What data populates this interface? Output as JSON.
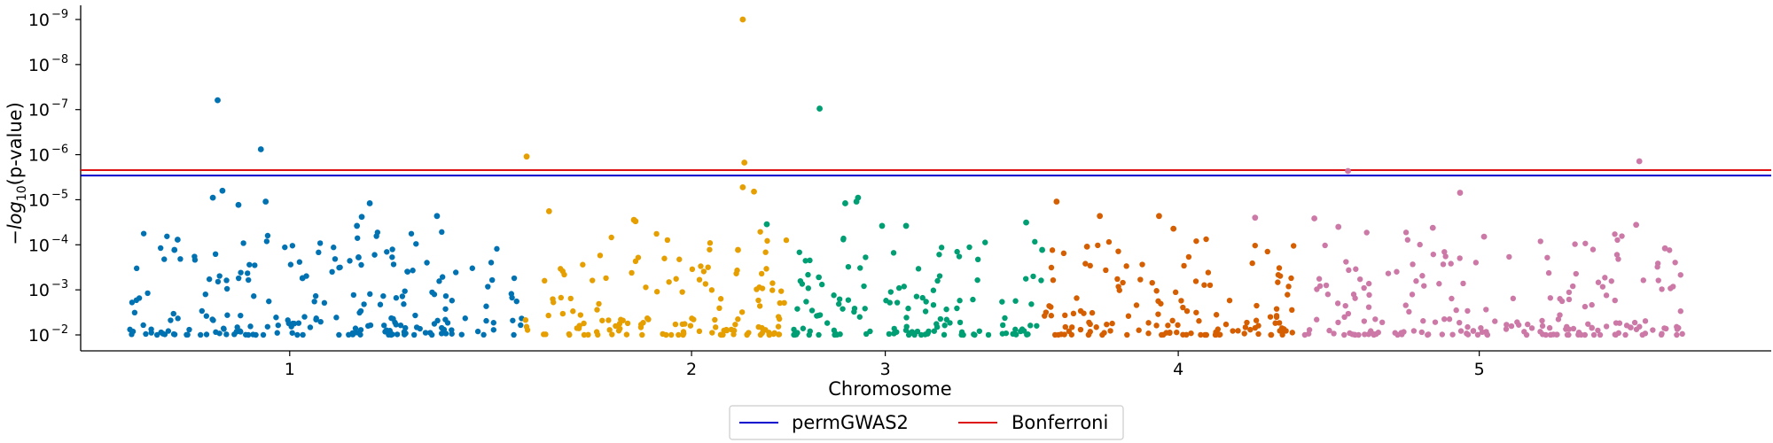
{
  "chart_data": {
    "type": "scatter",
    "title": "",
    "xlabel": "Chromosome",
    "ylabel_prefix": "−log",
    "ylabel_sub": "10",
    "ylabel_suffix": "(p-value)",
    "y_scale": "log",
    "grid": false,
    "legend_position": "bottom-center",
    "ylim": [
      0.01,
      1e-09
    ],
    "y_ticks": [
      {
        "base": "10",
        "exp": "−2",
        "value": 0.01
      },
      {
        "base": "10",
        "exp": "−3",
        "value": 0.001
      },
      {
        "base": "10",
        "exp": "−4",
        "value": 0.0001
      },
      {
        "base": "10",
        "exp": "−5",
        "value": 1e-05
      },
      {
        "base": "10",
        "exp": "−6",
        "value": 1e-06
      },
      {
        "base": "10",
        "exp": "−7",
        "value": 1e-07
      },
      {
        "base": "10",
        "exp": "−8",
        "value": 1e-08
      },
      {
        "base": "10",
        "exp": "−9",
        "value": 1e-09
      }
    ],
    "x_range": [
      0,
      1000
    ],
    "x_ticks": [
      {
        "label": "1",
        "pos": 130
      },
      {
        "label": "2",
        "pos": 381
      },
      {
        "label": "3",
        "pos": 502
      },
      {
        "label": "4",
        "pos": 685
      },
      {
        "label": "5",
        "pos": 873
      }
    ],
    "thresholds": [
      {
        "name": "permGWAS2",
        "value": 2.9e-06,
        "color": "#0000cc"
      },
      {
        "name": "Bonferroni",
        "value": 2.2e-06,
        "color": "#dd1111"
      }
    ],
    "chromosomes": [
      {
        "name": "1",
        "color": "#0072b2",
        "x_range": [
          28,
          276
        ],
        "highlights": [
          [
            85,
            6.2e-08
          ],
          [
            112,
            7.6e-07
          ],
          [
            82,
            9e-06
          ],
          [
            88,
            6.3e-06
          ],
          [
            98,
            1.3e-05
          ],
          [
            172,
            3.8e-05
          ],
          [
            60,
            7.7e-05
          ],
          [
            173,
            0.00019
          ],
          [
            175,
            2.4e-05
          ],
          [
            180,
            1.2e-05
          ],
          [
            222,
            2.3e-05
          ],
          [
            115,
            1.1e-05
          ],
          [
            58,
            0.00013
          ],
          [
            138,
            0.00055
          ]
        ]
      },
      {
        "name": "2",
        "color": "#e69f00",
        "x_range": [
          277,
          442
        ],
        "highlights": [
          [
            278,
            1.1e-06
          ],
          [
            292,
            1.8e-05
          ],
          [
            413,
            1e-09
          ],
          [
            414,
            1.5e-06
          ],
          [
            420,
            6.6e-06
          ],
          [
            413,
            5.3e-06
          ],
          [
            345,
            2.8e-05
          ],
          [
            346,
            3e-05
          ],
          [
            410,
            0.00013
          ]
        ]
      },
      {
        "name": "3",
        "color": "#009e73",
        "x_range": [
          443,
          600
        ],
        "highlights": [
          [
            461,
            9.5e-08
          ],
          [
            477,
            1.2e-05
          ],
          [
            484,
            1.1e-05
          ],
          [
            485,
            9e-06
          ],
          [
            500,
            3.8e-05
          ],
          [
            428,
            3.5e-05
          ],
          [
            515,
            3.8e-05
          ],
          [
            590,
            3.2e-05
          ],
          [
            600,
            0.00013
          ]
        ]
      },
      {
        "name": "4",
        "color": "#d55e00",
        "x_range": [
          601,
          762
        ],
        "highlights": [
          [
            609,
            1.1e-05
          ],
          [
            636,
            2.3e-05
          ],
          [
            673,
            2.3e-05
          ],
          [
            682,
            4.4e-05
          ],
          [
            628,
            0.00011
          ]
        ]
      },
      {
        "name": "5",
        "color": "#cc79a7",
        "x_range": [
          763,
          1000
        ],
        "highlights": [
          [
            791,
            2.3e-06
          ],
          [
            973,
            1.4e-06
          ],
          [
            844,
            4.2e-05
          ],
          [
            733,
            2.5e-05
          ],
          [
            770,
            2.6e-05
          ],
          [
            785,
            4e-05
          ],
          [
            861,
            7e-06
          ],
          [
            876,
            6.6e-05
          ],
          [
            971,
            3.6e-05
          ],
          [
            989,
            0.00012
          ]
        ]
      }
    ]
  }
}
